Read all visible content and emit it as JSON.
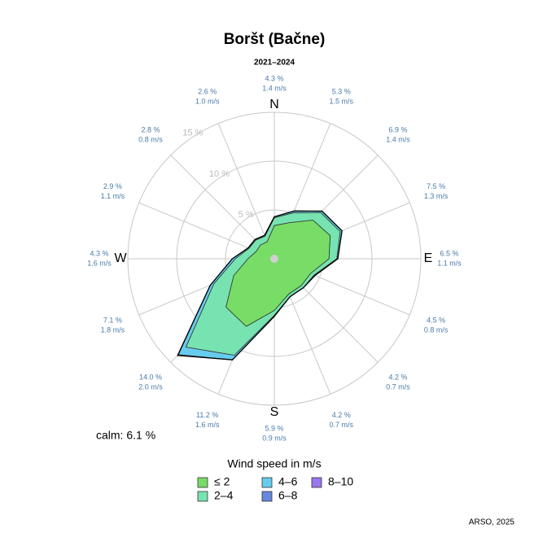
{
  "chart_data": {
    "type": "wind_rose",
    "title": "Boršt (Bačne)",
    "subtitle": "2021–2024",
    "categories": [
      "N",
      null,
      null,
      null,
      "E",
      null,
      null,
      null,
      "S",
      null,
      null,
      null,
      "W",
      null,
      null,
      null
    ],
    "direction_labels": [
      "4.3 %",
      "5.3 %",
      "6.9 %",
      "7.5 %",
      "6.5 %",
      "4.5 %",
      "4.2 %",
      "4.2 %",
      "5.9 %",
      "11.2 %",
      "14.0 %",
      "7.1 %",
      "4.3 %",
      "2.9 %",
      "2.8 %",
      "2.6 %"
    ],
    "speed_labels": [
      "1.4 m/s",
      "1.5 m/s",
      "1.4 m/s",
      "1.3 m/s",
      "1.1 m/s",
      "0.8 m/s",
      "0.7 m/s",
      "0.7 m/s",
      "0.9 m/s",
      "1.6 m/s",
      "2.0 m/s",
      "1.8 m/s",
      "1.6 m/s",
      "1.1 m/s",
      "0.8 m/s",
      "1.0 m/s"
    ],
    "series": [
      {
        "name": "≤ 2",
        "color": "#77dd66",
        "values": [
          3.4,
          4.0,
          5.6,
          6.2,
          5.6,
          4.0,
          3.9,
          3.9,
          5.3,
          7.5,
          7.0,
          4.5,
          2.7,
          2.0,
          2.0,
          1.9
        ]
      },
      {
        "name": "2–4",
        "color": "#77e3b0",
        "values": [
          0.8,
          1.1,
          1.1,
          1.1,
          0.8,
          0.4,
          0.3,
          0.3,
          0.5,
          3.2,
          5.8,
          2.2,
          1.3,
          0.8,
          0.7,
          0.6
        ]
      },
      {
        "name": "4–6",
        "color": "#66ccee",
        "values": [
          0.1,
          0.2,
          0.2,
          0.2,
          0.1,
          0.1,
          0,
          0,
          0.1,
          0.5,
          1.1,
          0.4,
          0.3,
          0.1,
          0.1,
          0.1
        ]
      },
      {
        "name": "6–8",
        "color": "#6688dd",
        "values": [
          0,
          0,
          0,
          0,
          0,
          0,
          0,
          0,
          0,
          0,
          0.1,
          0,
          0,
          0,
          0,
          0
        ]
      },
      {
        "name": "8–10",
        "color": "#9977ee",
        "values": [
          0,
          0,
          0,
          0,
          0,
          0,
          0,
          0,
          0,
          0,
          0,
          0,
          0,
          0,
          0,
          0
        ]
      }
    ],
    "rlim": [
      0,
      15
    ],
    "rticks": [
      {
        "value": 5,
        "label": "5 %"
      },
      {
        "value": 10,
        "label": "10 %"
      },
      {
        "value": 15,
        "label": "15 %"
      }
    ],
    "calm_label": "calm: 6.1 %",
    "legend_title": "Wind speed in m/s",
    "source": "ARSO, 2025"
  }
}
